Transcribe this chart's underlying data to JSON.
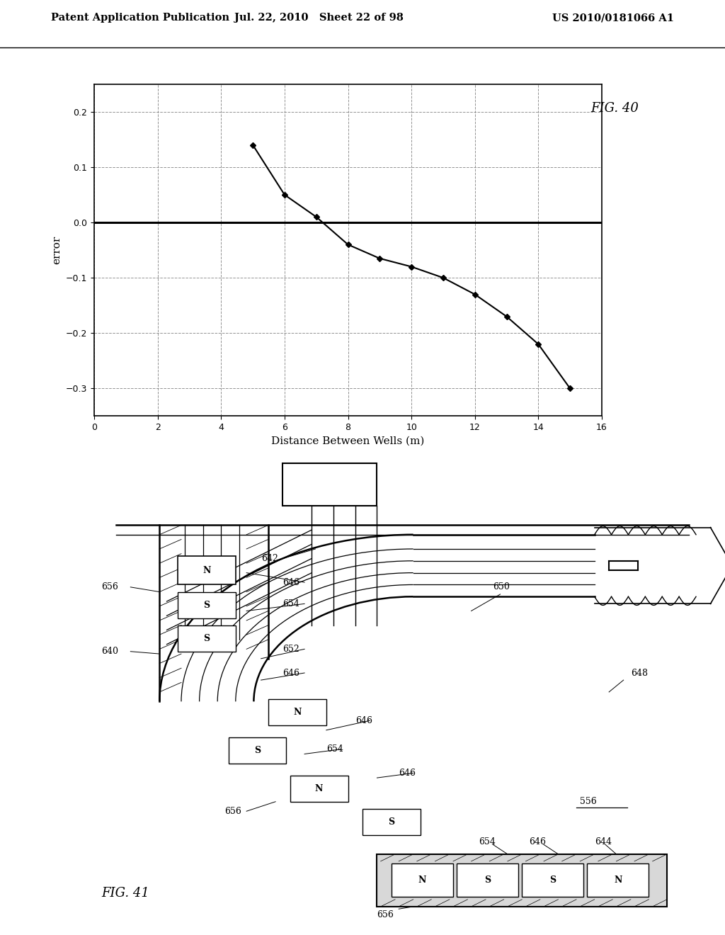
{
  "header_left": "Patent Application Publication",
  "header_center": "Jul. 22, 2010   Sheet 22 of 98",
  "header_right": "US 2010/0181066 A1",
  "fig40": {
    "title": "FIG. 40",
    "xlabel": "Distance Between Wells (m)",
    "ylabel": "error",
    "xlim": [
      0,
      16
    ],
    "ylim": [
      -0.35,
      0.25
    ],
    "xticks": [
      0,
      2,
      4,
      6,
      8,
      10,
      12,
      14,
      16
    ],
    "yticks": [
      -0.3,
      -0.2,
      -0.1,
      0.0,
      0.1,
      0.2
    ],
    "x_data": [
      5.0,
      6.0,
      7.0,
      8.0,
      9.0,
      10.0,
      11.0,
      12.0,
      13.0,
      14.0,
      15.0
    ],
    "y_data": [
      0.14,
      0.05,
      0.01,
      -0.04,
      -0.065,
      -0.08,
      -0.1,
      -0.13,
      -0.17,
      -0.22,
      -0.3
    ],
    "line_color": "#000000",
    "marker": "D",
    "marker_size": 4,
    "grid_color": "#888888",
    "zero_line_color": "#000000"
  },
  "fig41": {
    "title": "FIG. 41"
  },
  "background_color": "#ffffff"
}
